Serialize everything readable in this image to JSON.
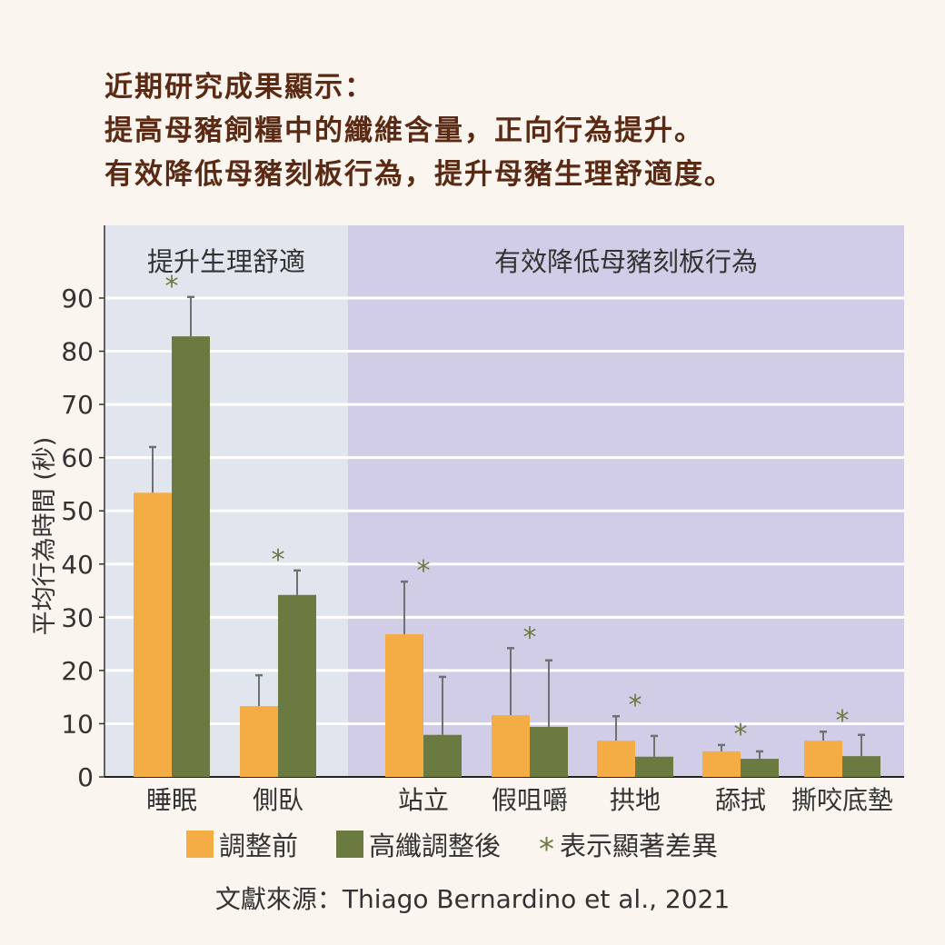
{
  "title_lines": [
    "近期研究成果顯示：",
    "提高母豬飼糧中的纖維含量，正向行為提升。",
    "有效降低母豬刻板行為，提升母豬生理舒適度。"
  ],
  "chart_data": {
    "type": "bar",
    "ylabel": "平均行為時間 (秒)",
    "ylim": [
      0,
      90
    ],
    "yticks": [
      0,
      10,
      20,
      30,
      40,
      50,
      60,
      70,
      80,
      90
    ],
    "grid": true,
    "categories": [
      "睡眠",
      "側臥",
      "站立",
      "假咀嚼",
      "拱地",
      "舔拭",
      "撕咬底墊"
    ],
    "panels": [
      {
        "label": "提升生理舒適",
        "categories": [
          "睡眠",
          "側臥"
        ],
        "color": "#e1e6ee"
      },
      {
        "label": "有效降低母豬刻板行為",
        "categories": [
          "站立",
          "假咀嚼",
          "拱地",
          "舔拭",
          "撕咬底墊"
        ],
        "color": "#d2cde6"
      }
    ],
    "series": [
      {
        "name": "調整前",
        "color": "#f4ac44",
        "values": [
          53.4,
          13.3,
          26.8,
          11.6,
          6.8,
          4.8,
          6.8
        ],
        "error_upper": [
          62,
          19.1,
          36.7,
          24.2,
          11.4,
          6.0,
          8.5
        ]
      },
      {
        "name": "高纖調整後",
        "color": "#6b7a40",
        "values": [
          82.8,
          34.2,
          7.9,
          9.4,
          3.8,
          3.4,
          3.9
        ],
        "error_upper": [
          90.2,
          38.8,
          18.8,
          21.9,
          7.7,
          4.8,
          7.9
        ]
      }
    ],
    "significant": [
      true,
      true,
      true,
      true,
      true,
      true,
      true
    ],
    "legend": {
      "position": "bottom",
      "significance_label": "表示顯著差異"
    }
  },
  "source": "文獻來源：Thiago Bernardino et al., 2021"
}
